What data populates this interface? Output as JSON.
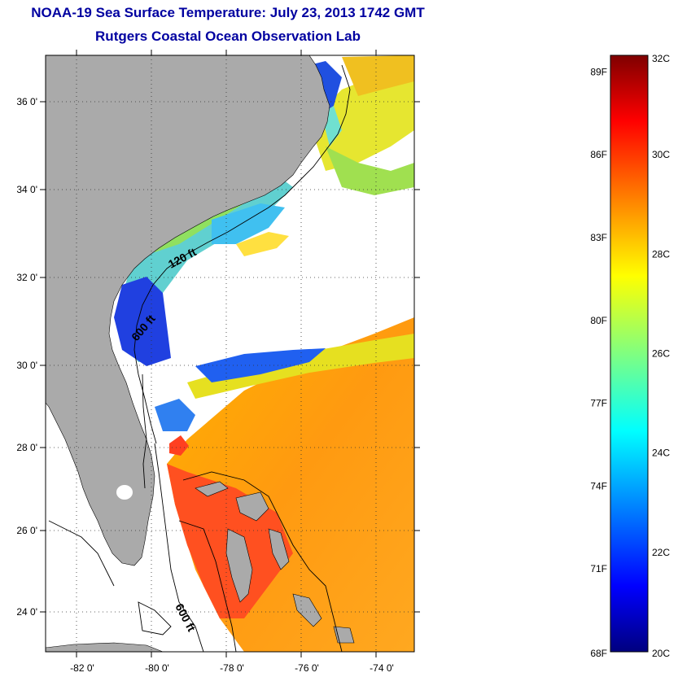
{
  "header": {
    "title": "NOAA-19 Sea Surface Temperature:  July 23, 2013 1742 GMT",
    "subtitle": "Rutgers Coastal Ocean Observation Lab"
  },
  "map": {
    "lon_range": [
      -83.0,
      -73.0
    ],
    "lat_range": [
      23.0,
      37.0
    ],
    "lon_ticks": [
      -82,
      -80,
      -78,
      -76,
      -74
    ],
    "lon_tick_labels": [
      "-82 0'",
      "-80 0'",
      "-78 0'",
      "-76 0'",
      "-74 0'"
    ],
    "lat_ticks": [
      24,
      26,
      28,
      30,
      32,
      34,
      36
    ],
    "lat_tick_labels": [
      "24 0'",
      "26 0'",
      "28 0'",
      "30 0'",
      "32 0'",
      "34 0'",
      "36 0'"
    ],
    "contour_labels": [
      "120 ft",
      "600 ft",
      "600 ft"
    ],
    "colors": {
      "land": "#aaaaaa",
      "ocean_nodata": "#ffffff",
      "grid": "#444444"
    }
  },
  "colorbar": {
    "celsius_labels": [
      "32C",
      "30C",
      "28C",
      "26C",
      "24C",
      "22C",
      "20C"
    ],
    "fahrenheit_labels": [
      "89F",
      "86F",
      "83F",
      "80F",
      "77F",
      "74F",
      "71F",
      "68F"
    ],
    "celsius_values": [
      32,
      30,
      28,
      26,
      24,
      22,
      20
    ],
    "fahrenheit_values": [
      89,
      86,
      83,
      80,
      77,
      74,
      71,
      68
    ],
    "range_c": [
      20,
      32
    ],
    "colormap": [
      "#00007f",
      "#0000ff",
      "#0080ff",
      "#00ffff",
      "#80ff80",
      "#ffff00",
      "#ff8000",
      "#ff0000",
      "#7f0000"
    ]
  }
}
